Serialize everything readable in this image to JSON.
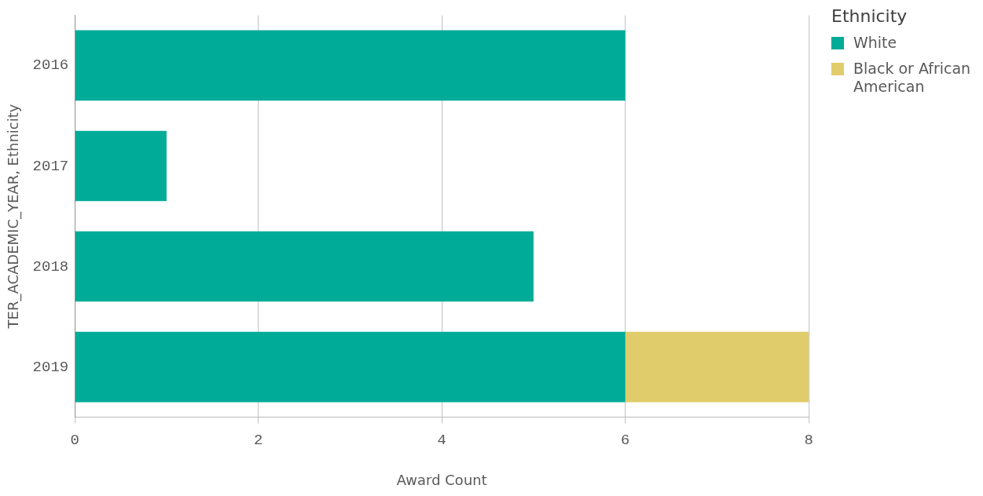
{
  "chart_data": {
    "type": "bar",
    "orientation": "horizontal",
    "stacked": true,
    "xlabel": "Award Count",
    "ylabel": "TER_ACADEMIC_YEAR, Ethnicity",
    "legend_title": "Ethnicity",
    "categories": [
      "2016",
      "2017",
      "2018",
      "2019"
    ],
    "series": [
      {
        "name": "White",
        "color": "#00ab98",
        "values": [
          6,
          1,
          5,
          6
        ]
      },
      {
        "name": "Black or African American",
        "color": "#e0cc6a",
        "values": [
          null,
          null,
          null,
          2
        ]
      }
    ],
    "xlim": [
      0,
      8
    ],
    "xticks": [
      0,
      2,
      4,
      6,
      8
    ],
    "grid": "x",
    "legend": "top right"
  }
}
